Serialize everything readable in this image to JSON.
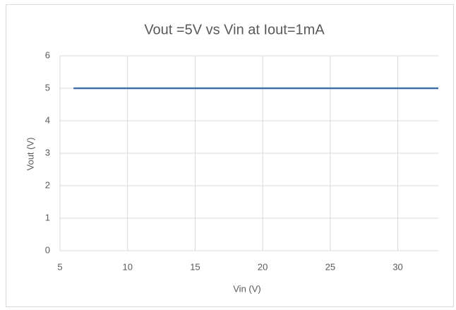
{
  "chart_data": {
    "type": "line",
    "title": "Vout =5V vs Vin at Iout=1mA",
    "x_label": "Vin (V)",
    "y_label": "Vout (V)",
    "x": [
      6,
      33
    ],
    "series": [
      {
        "name": "Vout",
        "color": "#4470a8",
        "values": [
          5,
          5
        ]
      }
    ],
    "xlim": [
      5,
      33
    ],
    "xticks": [
      5,
      10,
      15,
      20,
      25,
      30
    ],
    "ylim": [
      0,
      6
    ],
    "yticks": [
      0,
      1,
      2,
      3,
      4,
      5,
      6
    ],
    "grid": true
  }
}
